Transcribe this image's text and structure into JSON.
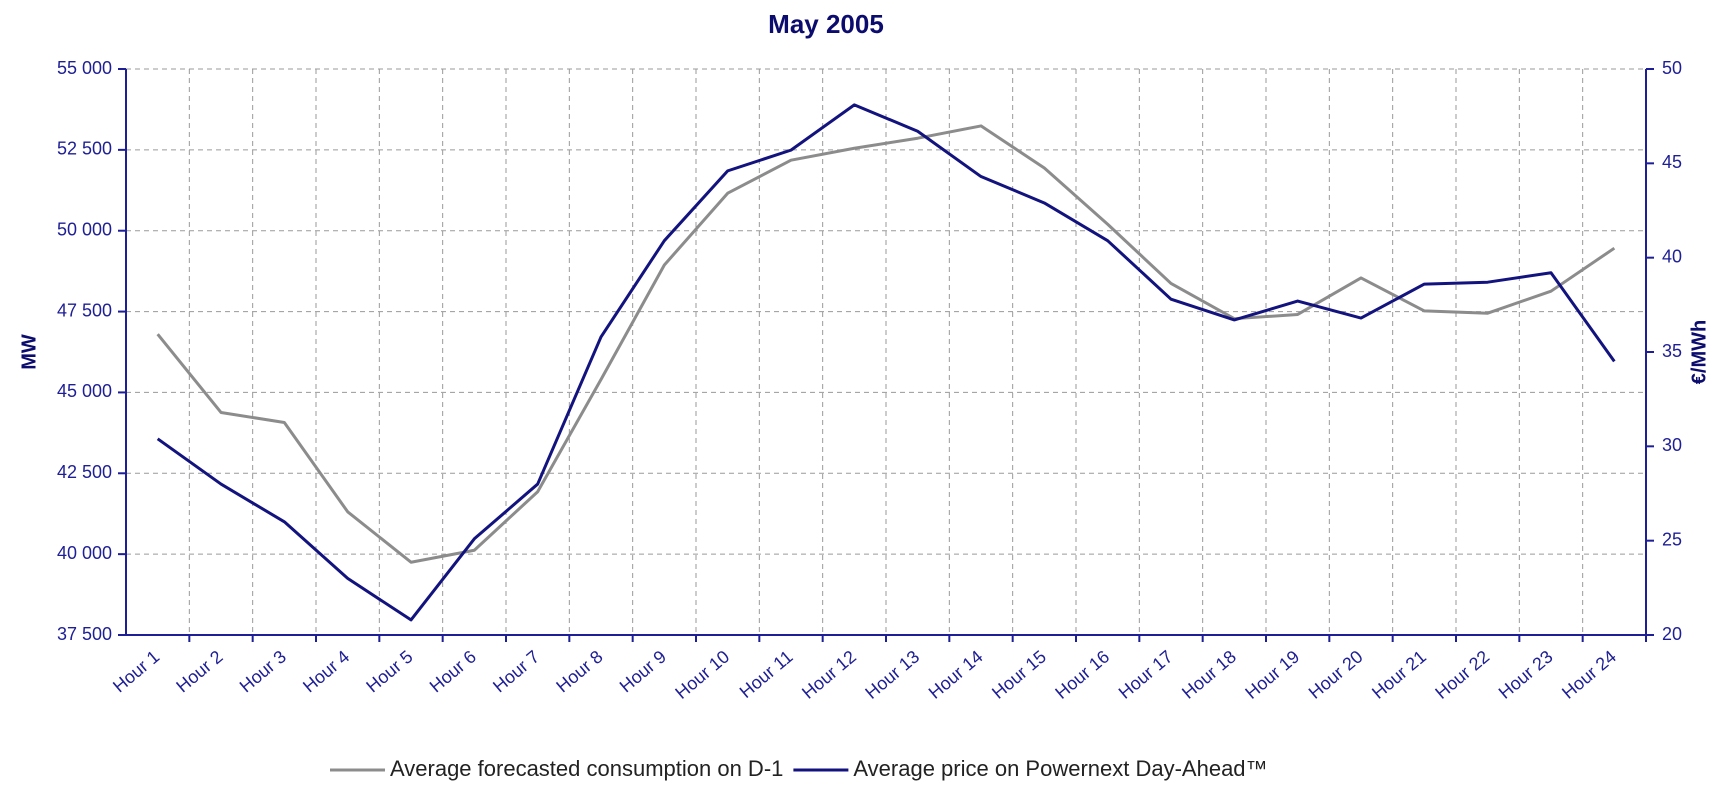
{
  "chart_data": {
    "type": "line",
    "title": "May 2005",
    "ylabel": "MW",
    "y2label": "€/MWh",
    "categories": [
      "Hour 1",
      "Hour 2",
      "Hour 3",
      "Hour 4",
      "Hour 5",
      "Hour 6",
      "Hour 7",
      "Hour 8",
      "Hour 9",
      "Hour 10",
      "Hour 11",
      "Hour 12",
      "Hour 13",
      "Hour 14",
      "Hour 15",
      "Hour 16",
      "Hour 17",
      "Hour 18",
      "Hour 19",
      "Hour 20",
      "Hour 21",
      "Hour 22",
      "Hour 23",
      "Hour 24"
    ],
    "series": [
      {
        "name": "Average forecasted consumption on D-1",
        "color": "#8c8c8c",
        "values": [
          46800,
          44380,
          44070,
          41310,
          39750,
          40120,
          41930,
          45400,
          48940,
          51160,
          52180,
          52550,
          52860,
          53240,
          51940,
          50200,
          48370,
          47280,
          47410,
          48540,
          47520,
          47450,
          48130,
          49460
        ]
      },
      {
        "name": "Average price on Powernext Day-Ahead™",
        "color": "#13137f",
        "axis": "y2",
        "values": [
          30.4,
          28.0,
          26.0,
          23.0,
          20.8,
          25.1,
          28.0,
          35.8,
          40.9,
          44.6,
          45.7,
          48.1,
          46.7,
          44.3,
          42.9,
          40.9,
          37.8,
          36.7,
          37.7,
          36.8,
          38.6,
          38.7,
          39.2,
          34.5
        ]
      }
    ],
    "ylim": [
      37500,
      55000
    ],
    "yticks": [
      {
        "value": 37500,
        "label": "37 500"
      },
      {
        "value": 40000,
        "label": "40 000"
      },
      {
        "value": 42500,
        "label": "42 500"
      },
      {
        "value": 45000,
        "label": "45 000"
      },
      {
        "value": 47500,
        "label": "47 500"
      },
      {
        "value": 50000,
        "label": "50 000"
      },
      {
        "value": 52500,
        "label": "52 500"
      },
      {
        "value": 55000,
        "label": "55 000"
      }
    ],
    "y2lim": [
      20,
      50
    ],
    "y2ticks": [
      20,
      25,
      30,
      35,
      40,
      45,
      50
    ],
    "grid": true,
    "legend": "bottom"
  }
}
